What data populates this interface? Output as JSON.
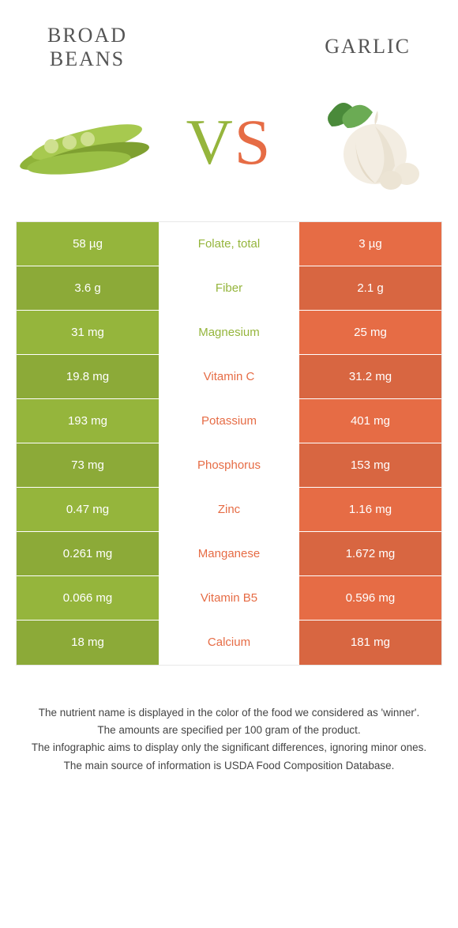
{
  "colors": {
    "green": "#95b53c",
    "orange": "#e66c45",
    "row_alt_darken": 0.06
  },
  "header": {
    "left_title_line1": "BROAD",
    "left_title_line2": "BEANS",
    "right_title": "GARLIC"
  },
  "vs": {
    "v": "V",
    "s": "S"
  },
  "rows": [
    {
      "left": "58 µg",
      "label": "Folate, total",
      "right": "3 µg",
      "winner": "left"
    },
    {
      "left": "3.6 g",
      "label": "Fiber",
      "right": "2.1 g",
      "winner": "left"
    },
    {
      "left": "31 mg",
      "label": "Magnesium",
      "right": "25 mg",
      "winner": "left"
    },
    {
      "left": "19.8 mg",
      "label": "Vitamin C",
      "right": "31.2 mg",
      "winner": "right"
    },
    {
      "left": "193 mg",
      "label": "Potassium",
      "right": "401 mg",
      "winner": "right"
    },
    {
      "left": "73 mg",
      "label": "Phosphorus",
      "right": "153 mg",
      "winner": "right"
    },
    {
      "left": "0.47 mg",
      "label": "Zinc",
      "right": "1.16 mg",
      "winner": "right"
    },
    {
      "left": "0.261 mg",
      "label": "Manganese",
      "right": "1.672 mg",
      "winner": "right"
    },
    {
      "left": "0.066 mg",
      "label": "Vitamin B5",
      "right": "0.596 mg",
      "winner": "right"
    },
    {
      "left": "18 mg",
      "label": "Calcium",
      "right": "181 mg",
      "winner": "right"
    }
  ],
  "footer": {
    "line1": "The nutrient name is displayed in the color of the food we considered as 'winner'.",
    "line2": "The amounts are specified per 100 gram of the product.",
    "line3": "The infographic aims to display only the significant differences, ignoring minor ones.",
    "line4": "The main source of information is USDA Food Composition Database."
  }
}
